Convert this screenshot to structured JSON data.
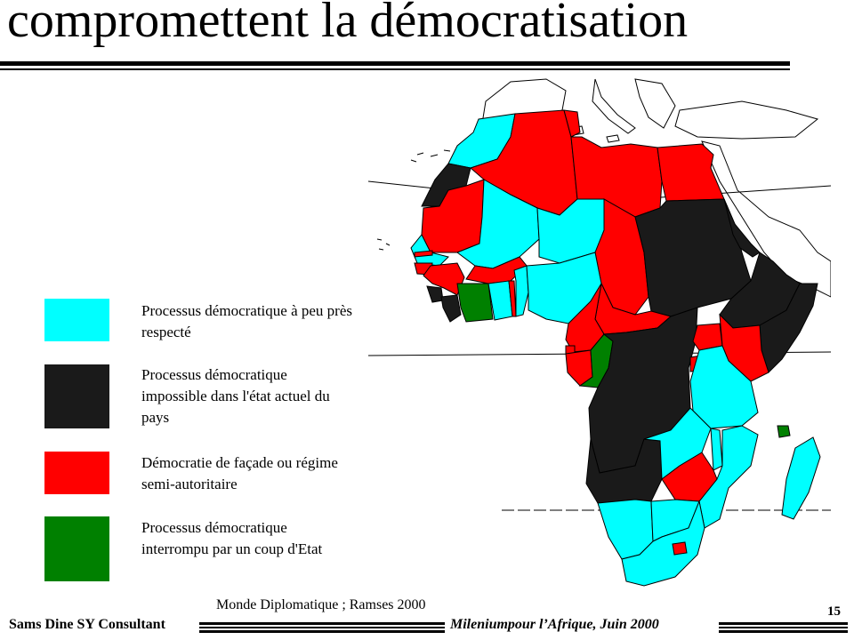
{
  "slide": {
    "title": "compromettent la démocratisation",
    "source": "Monde Diplomatique  ; Ramses 2000",
    "footer_left": "Sams Dine SY Consultant",
    "footer_right": "Mileniumpour l’Afrique, Juin 2000",
    "page_number": "15"
  },
  "colors": {
    "respected": "#00ffff",
    "impossible": "#1a1a1a",
    "facade": "#ff0000",
    "coup": "#008000"
  },
  "legend": [
    {
      "key": "respected",
      "label": "Processus démocratique à peu près respecté"
    },
    {
      "key": "impossible",
      "label": "Processus démocratique impossible dans l'état actuel du pays"
    },
    {
      "key": "facade",
      "label": "Démocratie de façade ou régime semi-autoritaire"
    },
    {
      "key": "coup",
      "label": "Processus démocratique interrompu par un coup d'Etat"
    }
  ]
}
